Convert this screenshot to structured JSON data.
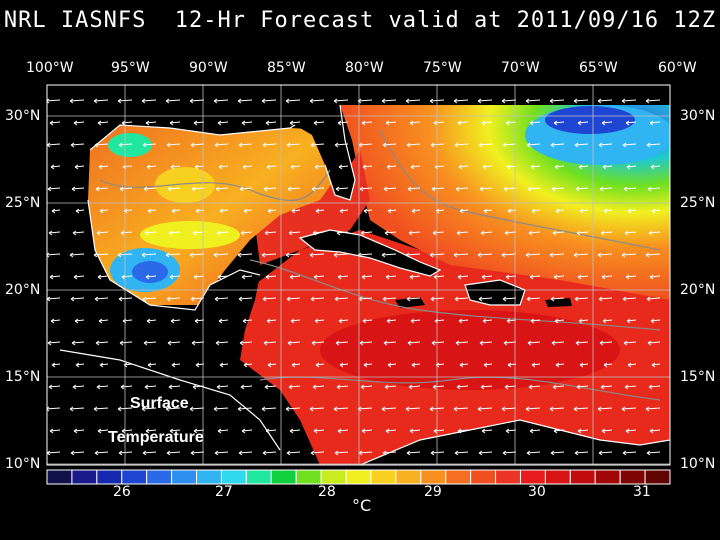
{
  "title": "NRL IASNFS  12-Hr Forecast valid at 2011/09/16 12Z",
  "longitude_labels": [
    "100°W",
    "95°W",
    "90°W",
    "85°W",
    "80°W",
    "75°W",
    "70°W",
    "65°W",
    "60°W"
  ],
  "latitude_labels": [
    "30°N",
    "25°N",
    "20°N",
    "15°N",
    "10°N"
  ],
  "overlay": {
    "line1": "Surface",
    "line2": "Temperature"
  },
  "colorbar": {
    "tick_labels": [
      "26",
      "27",
      "28",
      "29",
      "30",
      "31"
    ],
    "unit": "°C",
    "colors": [
      "#12124a",
      "#1a1a8c",
      "#1428b0",
      "#1f46d2",
      "#2a6ae8",
      "#2e8ef0",
      "#30b4f2",
      "#30d8ee",
      "#20e6a0",
      "#10d040",
      "#70e020",
      "#c8ec20",
      "#f0f020",
      "#f8d020",
      "#f8b020",
      "#f89020",
      "#f47020",
      "#f05020",
      "#ec3424",
      "#e81c1c",
      "#d81414",
      "#c00c0c",
      "#a00808",
      "#800404",
      "#600404"
    ]
  }
}
